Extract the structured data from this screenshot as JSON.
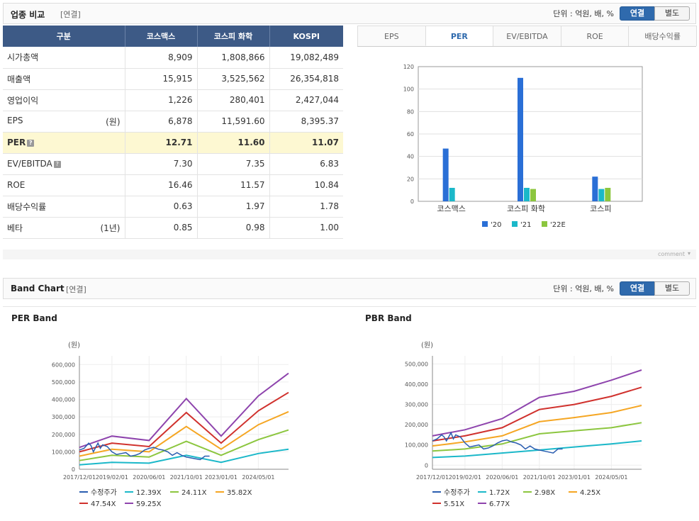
{
  "compare": {
    "title": "업종 비교",
    "sub": "[연결]",
    "unit_label": "단위 : 억원, 배, %",
    "toggle_on": "연결",
    "toggle_off": "별도",
    "headers": [
      "구분",
      "코스맥스",
      "코스피 화학",
      "KOSPI"
    ],
    "rows": [
      {
        "label": "시가총액",
        "unit": "",
        "values": [
          "8,909",
          "1,808,866",
          "19,082,489"
        ],
        "highlight": false,
        "help": false
      },
      {
        "label": "매출액",
        "unit": "",
        "values": [
          "15,915",
          "3,525,562",
          "26,354,818"
        ],
        "highlight": false,
        "help": false
      },
      {
        "label": "영업이익",
        "unit": "",
        "values": [
          "1,226",
          "280,401",
          "2,427,044"
        ],
        "highlight": false,
        "help": false
      },
      {
        "label": "EPS",
        "unit": "(원)",
        "values": [
          "6,878",
          "11,591.60",
          "8,395.37"
        ],
        "highlight": false,
        "help": false
      },
      {
        "label": "PER",
        "unit": "",
        "values": [
          "12.71",
          "11.60",
          "11.07"
        ],
        "highlight": true,
        "help": true
      },
      {
        "label": "EV/EBITDA",
        "unit": "",
        "values": [
          "7.30",
          "7.35",
          "6.83"
        ],
        "highlight": false,
        "help": true
      },
      {
        "label": "ROE",
        "unit": "",
        "values": [
          "16.46",
          "11.57",
          "10.84"
        ],
        "highlight": false,
        "help": false
      },
      {
        "label": "배당수익률",
        "unit": "",
        "values": [
          "0.63",
          "1.97",
          "1.78"
        ],
        "highlight": false,
        "help": false
      },
      {
        "label": "베타",
        "unit": "(1년)",
        "values": [
          "0.85",
          "0.98",
          "1.00"
        ],
        "highlight": false,
        "help": false
      }
    ],
    "help_mark": "?",
    "tabs": [
      "EPS",
      "PER",
      "EV/EBITDA",
      "ROE",
      "배당수익률"
    ],
    "active_tab": "PER",
    "comment": "comment"
  },
  "band": {
    "title": "Band Chart",
    "sub": "[연결]",
    "unit_label": "단위 : 억원, 배, %",
    "toggle_on": "연결",
    "toggle_off": "별도",
    "per_title": "PER Band",
    "pbr_title": "PBR Band"
  },
  "chart_data": [
    {
      "type": "bar",
      "categories": [
        "코스맥스",
        "코스피 화학",
        "코스피"
      ],
      "series": [
        {
          "name": "'20",
          "color": "#2a6fd6",
          "values": [
            47,
            110,
            22
          ]
        },
        {
          "name": "'21",
          "color": "#1bb8c9",
          "values": [
            12,
            12,
            11
          ]
        },
        {
          "name": "'22E",
          "color": "#8cc63f",
          "values": [
            null,
            11,
            12
          ]
        }
      ],
      "ylim": [
        0,
        120
      ],
      "yticks": [
        0,
        20,
        40,
        60,
        80,
        100,
        120
      ],
      "grid": true,
      "legend": "bottom"
    },
    {
      "type": "line",
      "title": "PER Band",
      "ylabel": "(원)",
      "ylim": [
        0,
        650000
      ],
      "yticks": [
        "0",
        "100,000",
        "200,000",
        "300,000",
        "400,000",
        "500,000",
        "600,000"
      ],
      "ytick_values": [
        0,
        100000,
        200000,
        300000,
        400000,
        500000,
        600000
      ],
      "xticks": [
        "2017/12/01",
        "2019/02/01",
        "2020/06/01",
        "2021/10/01",
        "2023/01/01",
        "2024/05/01"
      ],
      "xrange": [
        0,
        90
      ],
      "xtick_pos": [
        0,
        14,
        30,
        46,
        61,
        77
      ],
      "legend": "bottom",
      "series": [
        {
          "name": "수정주가",
          "color": "#2a5db0",
          "points": [
            [
              0,
              110000
            ],
            [
              2,
              120000
            ],
            [
              4,
              150000
            ],
            [
              5,
              135000
            ],
            [
              6,
              100000
            ],
            [
              8,
              150000
            ],
            [
              9,
              120000
            ],
            [
              10,
              140000
            ],
            [
              12,
              130000
            ],
            [
              14,
              100000
            ],
            [
              16,
              85000
            ],
            [
              18,
              90000
            ],
            [
              20,
              95000
            ],
            [
              22,
              75000
            ],
            [
              24,
              80000
            ],
            [
              26,
              90000
            ],
            [
              28,
              110000
            ],
            [
              30,
              120000
            ],
            [
              32,
              125000
            ],
            [
              34,
              115000
            ],
            [
              36,
              110000
            ],
            [
              38,
              100000
            ],
            [
              40,
              80000
            ],
            [
              42,
              95000
            ],
            [
              44,
              80000
            ],
            [
              46,
              70000
            ],
            [
              48,
              65000
            ],
            [
              50,
              60000
            ],
            [
              52,
              55000
            ],
            [
              54,
              75000
            ],
            [
              56,
              75000
            ]
          ]
        },
        {
          "name": "12.39X",
          "color": "#1bb8c9",
          "points": [
            [
              0,
              25000
            ],
            [
              14,
              40000
            ],
            [
              30,
              35000
            ],
            [
              46,
              80000
            ],
            [
              61,
              40000
            ],
            [
              77,
              90000
            ],
            [
              90,
              115000
            ]
          ]
        },
        {
          "name": "24.11X",
          "color": "#8cc63f",
          "points": [
            [
              0,
              50000
            ],
            [
              14,
              80000
            ],
            [
              30,
              70000
            ],
            [
              46,
              160000
            ],
            [
              61,
              80000
            ],
            [
              77,
              170000
            ],
            [
              90,
              225000
            ]
          ]
        },
        {
          "name": "35.82X",
          "color": "#f5a623",
          "points": [
            [
              0,
              75000
            ],
            [
              14,
              115000
            ],
            [
              30,
              100000
            ],
            [
              46,
              245000
            ],
            [
              61,
              115000
            ],
            [
              77,
              255000
            ],
            [
              90,
              330000
            ]
          ]
        },
        {
          "name": "47.54X",
          "color": "#d0312d",
          "points": [
            [
              0,
              100000
            ],
            [
              14,
              150000
            ],
            [
              30,
              130000
            ],
            [
              46,
              325000
            ],
            [
              61,
              150000
            ],
            [
              77,
              335000
            ],
            [
              90,
              440000
            ]
          ]
        },
        {
          "name": "59.25X",
          "color": "#8e44ad",
          "points": [
            [
              0,
              125000
            ],
            [
              14,
              190000
            ],
            [
              30,
              165000
            ],
            [
              46,
              405000
            ],
            [
              61,
              190000
            ],
            [
              77,
              420000
            ],
            [
              90,
              550000
            ]
          ]
        }
      ]
    },
    {
      "type": "line",
      "title": "PBR Band",
      "ylabel": "(원)",
      "ylim": [
        -20000,
        540000
      ],
      "yticks": [
        "0",
        "100,000",
        "200,000",
        "300,000",
        "400,000",
        "500,000"
      ],
      "ytick_values": [
        0,
        100000,
        200000,
        300000,
        400000,
        500000
      ],
      "xticks": [
        "2017/12/01",
        "2019/02/01",
        "2020/06/01",
        "2021/10/01",
        "2023/01/01",
        "2024/05/01"
      ],
      "xrange": [
        0,
        90
      ],
      "xtick_pos": [
        0,
        14,
        30,
        46,
        61,
        77
      ],
      "legend": "bottom",
      "series": [
        {
          "name": "수정주가",
          "color": "#2a5db0",
          "points": [
            [
              0,
              120000
            ],
            [
              2,
              130000
            ],
            [
              4,
              150000
            ],
            [
              5,
              140000
            ],
            [
              6,
              120000
            ],
            [
              8,
              160000
            ],
            [
              9,
              130000
            ],
            [
              10,
              150000
            ],
            [
              12,
              140000
            ],
            [
              14,
              110000
            ],
            [
              16,
              90000
            ],
            [
              18,
              95000
            ],
            [
              20,
              100000
            ],
            [
              22,
              80000
            ],
            [
              24,
              85000
            ],
            [
              26,
              95000
            ],
            [
              28,
              110000
            ],
            [
              30,
              120000
            ],
            [
              32,
              125000
            ],
            [
              34,
              115000
            ],
            [
              36,
              110000
            ],
            [
              38,
              100000
            ],
            [
              40,
              80000
            ],
            [
              42,
              95000
            ],
            [
              44,
              80000
            ],
            [
              46,
              75000
            ],
            [
              48,
              70000
            ],
            [
              50,
              65000
            ],
            [
              52,
              60000
            ],
            [
              54,
              80000
            ],
            [
              56,
              80000
            ]
          ]
        },
        {
          "name": "1.72X",
          "color": "#1bb8c9",
          "points": [
            [
              0,
              38000
            ],
            [
              14,
              45000
            ],
            [
              30,
              60000
            ],
            [
              46,
              75000
            ],
            [
              61,
              90000
            ],
            [
              77,
              105000
            ],
            [
              90,
              120000
            ]
          ]
        },
        {
          "name": "2.98X",
          "color": "#8cc63f",
          "points": [
            [
              0,
              70000
            ],
            [
              14,
              80000
            ],
            [
              30,
              105000
            ],
            [
              46,
              155000
            ],
            [
              61,
              170000
            ],
            [
              77,
              185000
            ],
            [
              90,
              210000
            ]
          ]
        },
        {
          "name": "4.25X",
          "color": "#f5a623",
          "points": [
            [
              0,
              95000
            ],
            [
              14,
              115000
            ],
            [
              30,
              145000
            ],
            [
              46,
              215000
            ],
            [
              61,
              235000
            ],
            [
              77,
              260000
            ],
            [
              90,
              295000
            ]
          ]
        },
        {
          "name": "5.51X",
          "color": "#d0312d",
          "points": [
            [
              0,
              120000
            ],
            [
              14,
              145000
            ],
            [
              30,
              185000
            ],
            [
              46,
              275000
            ],
            [
              61,
              300000
            ],
            [
              77,
              340000
            ],
            [
              90,
              385000
            ]
          ]
        },
        {
          "name": "6.77X",
          "color": "#8e44ad",
          "points": [
            [
              0,
              145000
            ],
            [
              14,
              175000
            ],
            [
              30,
              230000
            ],
            [
              46,
              335000
            ],
            [
              61,
              365000
            ],
            [
              77,
              420000
            ],
            [
              90,
              470000
            ]
          ]
        }
      ]
    }
  ]
}
